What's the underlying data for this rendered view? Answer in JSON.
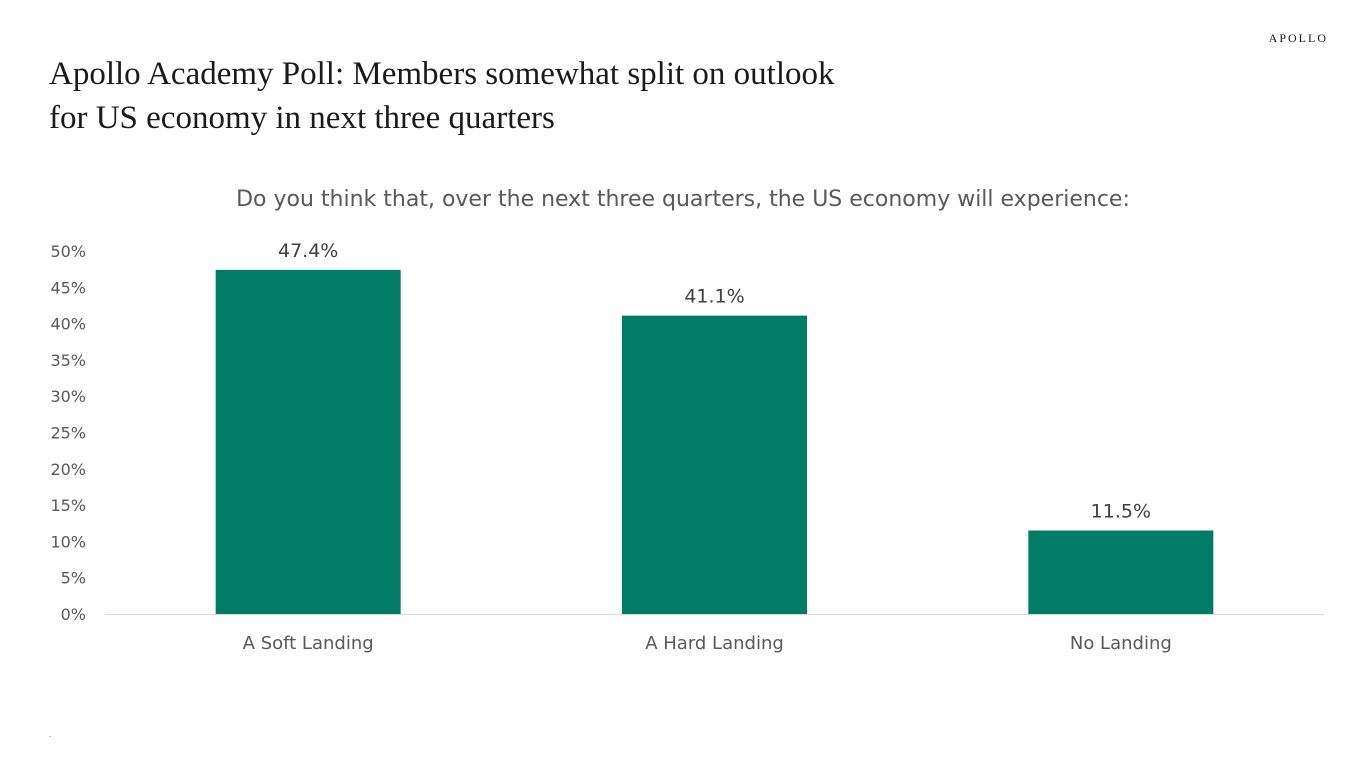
{
  "brand": {
    "logo_text": "APOLLO"
  },
  "header": {
    "title_line1": "Apollo Academy Poll: Members somewhat split on outlook",
    "title_line2": "for US economy in next three quarters"
  },
  "footnote": {
    "mark": "."
  },
  "colors": {
    "bar": "#007C65",
    "axis_text": "#595959",
    "label_text": "#404040",
    "baseline": "#d9d9d9"
  },
  "chart_data": {
    "type": "bar",
    "subtitle": "Do you think that, over the next three quarters, the US economy will experience:",
    "categories": [
      "A Soft Landing",
      "A Hard Landing",
      "No Landing"
    ],
    "values": [
      47.4,
      41.1,
      11.5
    ],
    "data_labels": [
      "47.4%",
      "41.1%",
      "11.5%"
    ],
    "ylim": [
      0,
      50
    ],
    "yticks": [
      0,
      5,
      10,
      15,
      20,
      25,
      30,
      35,
      40,
      45,
      50
    ],
    "ytick_labels": [
      "0%",
      "5%",
      "10%",
      "15%",
      "20%",
      "25%",
      "30%",
      "35%",
      "40%",
      "45%",
      "50%"
    ],
    "xlabel": "",
    "ylabel": "",
    "grid": false,
    "legend": "none"
  }
}
